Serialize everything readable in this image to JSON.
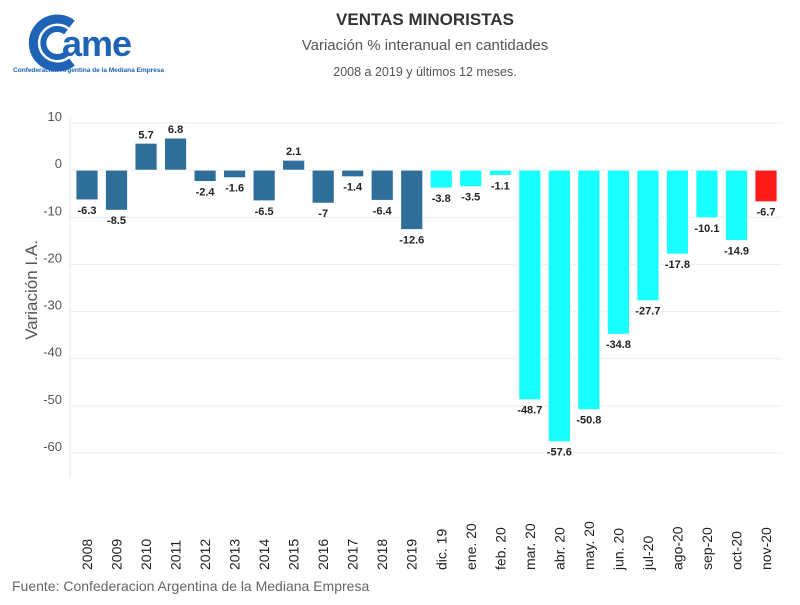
{
  "logo": {
    "text": "came",
    "subtitle": "Confederación Argentina de la Mediana Empresa",
    "brand_color": "#1f63b6"
  },
  "header": {
    "title": "VENTAS MINORISTAS",
    "subtitle": "Variación % interanual en cantidades",
    "subtitle2": "2008 a 2019 y últimos 12 meses."
  },
  "footer": {
    "source": "Fuente: Confederacion Argentina de la Mediana Empresa"
  },
  "chart_data": {
    "type": "bar",
    "title": "VENTAS MINORISTAS",
    "subtitle": "Variación % interanual en cantidades",
    "xlabel": "",
    "ylabel": "Variación I.A.",
    "ylim": [
      -60,
      10
    ],
    "yticks": [
      10,
      0,
      -10,
      -20,
      -30,
      -40,
      -50,
      -60
    ],
    "grid": true,
    "legend": "none",
    "categories": [
      "2008",
      "2009",
      "2010",
      "2011",
      "2012",
      "2013",
      "2014",
      "2015",
      "2016",
      "2017",
      "2018",
      "2019",
      "dic. 19",
      "ene. 20",
      "feb. 20",
      "mar. 20",
      "abr. 20",
      "may. 20",
      "jun. 20",
      "jul-20",
      "ago-20",
      "sep-20",
      "oct-20",
      "nov-20"
    ],
    "values": [
      -6.3,
      -8.5,
      5.7,
      6.8,
      -2.4,
      -1.6,
      -6.5,
      2.1,
      -7,
      -1.4,
      -6.4,
      -12.6,
      -3.8,
      -3.5,
      -1.1,
      -48.7,
      -57.6,
      -50.8,
      -34.8,
      -27.7,
      -17.8,
      -10.1,
      -14.9,
      -6.7
    ],
    "labels": [
      "-6.3",
      "-8.5",
      "5.7",
      "6.8",
      "-2.4",
      "-1.6",
      "-6.5",
      "2.1",
      "-7",
      "-1.4",
      "-6.4",
      "-12.6",
      "-3.8",
      "-3.5",
      "-1.1",
      "-48.7",
      "-57.6",
      "-50.8",
      "-34.8",
      "-27.7",
      "-17.8",
      "-10.1",
      "-14.9",
      "-6.7"
    ],
    "groups": [
      "annual",
      "annual",
      "annual",
      "annual",
      "annual",
      "annual",
      "annual",
      "annual",
      "annual",
      "annual",
      "annual",
      "annual",
      "monthly",
      "monthly",
      "monthly",
      "monthly",
      "monthly",
      "monthly",
      "monthly",
      "monthly",
      "monthly",
      "monthly",
      "monthly",
      "latest"
    ],
    "colors": {
      "annual": "#2e6e99",
      "monthly": "#19ffff",
      "latest": "#ff1a1a"
    }
  }
}
